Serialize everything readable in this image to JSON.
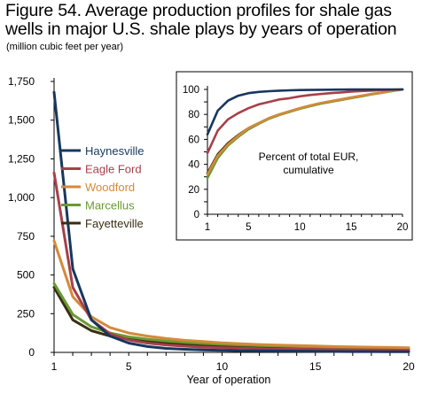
{
  "title_line1": "Figure 54. Average production profiles for shale gas",
  "title_line2": "wells in major U.S. shale plays by years of operation",
  "subtitle": "(million cubic feet per year)",
  "chart_data": [
    {
      "type": "line",
      "title": "Figure 54. Average production profiles for shale gas wells in major U.S. shale plays by years of operation",
      "ylabel": "(million cubic feet per year)",
      "xlabel": "Year of operation",
      "x": [
        1,
        2,
        3,
        4,
        5,
        6,
        7,
        8,
        9,
        10,
        11,
        12,
        13,
        14,
        15,
        16,
        17,
        18,
        19,
        20
      ],
      "xlim": [
        1,
        20
      ],
      "ylim": [
        0,
        1750
      ],
      "xticks": [
        "1",
        "5",
        "10",
        "15",
        "20"
      ],
      "yticks": [
        "0",
        "250",
        "500",
        "750",
        "1,000",
        "1,250",
        "1,500",
        "1,750"
      ],
      "legend": "top-left inside plot",
      "series": [
        {
          "name": "Haynesville",
          "color": "#17375e",
          "values": [
            1680,
            540,
            210,
            105,
            60,
            38,
            26,
            20,
            16,
            13,
            11,
            10,
            9,
            8,
            7,
            6,
            5,
            5,
            4,
            4
          ]
        },
        {
          "name": "Eagle Ford",
          "color": "#a6404a",
          "values": [
            1160,
            420,
            210,
            120,
            80,
            60,
            48,
            40,
            34,
            30,
            27,
            24,
            22,
            20,
            19,
            18,
            17,
            16,
            15,
            14
          ]
        },
        {
          "name": "Woodford",
          "color": "#d48a3a",
          "values": [
            720,
            360,
            230,
            160,
            125,
            105,
            90,
            78,
            70,
            62,
            56,
            51,
            47,
            44,
            41,
            38,
            36,
            34,
            32,
            30
          ]
        },
        {
          "name": "Marcellus",
          "color": "#6a9a32",
          "values": [
            445,
            245,
            165,
            125,
            100,
            85,
            74,
            65,
            58,
            52,
            48,
            44,
            41,
            38,
            36,
            34,
            32,
            30,
            28,
            27
          ]
        },
        {
          "name": "Fayetteville",
          "color": "#3a2e12",
          "values": [
            420,
            210,
            140,
            105,
            85,
            72,
            62,
            54,
            48,
            44,
            40,
            37,
            34,
            32,
            30,
            28,
            26,
            25,
            24,
            23
          ]
        }
      ]
    },
    {
      "type": "line",
      "title": "Percent of total EUR, cumulative",
      "annotation_line1": "Percent of total EUR,",
      "annotation_line2": "cumulative",
      "x": [
        1,
        2,
        3,
        4,
        5,
        6,
        7,
        8,
        9,
        10,
        11,
        12,
        13,
        14,
        15,
        16,
        17,
        18,
        19,
        20
      ],
      "xlim": [
        1,
        20
      ],
      "ylim": [
        0,
        100
      ],
      "xticks": [
        "1",
        "5",
        "10",
        "15",
        "20"
      ],
      "yticks": [
        "0",
        "10",
        "20",
        "30",
        "40",
        "50",
        "60",
        "70",
        "80",
        "90",
        "100"
      ],
      "series": [
        {
          "name": "Haynesville",
          "color": "#17375e",
          "values": [
            64,
            83,
            91,
            95,
            97,
            98,
            98.6,
            99,
            99.3,
            99.5,
            99.6,
            99.7,
            99.8,
            99.85,
            99.9,
            99.92,
            99.95,
            99.97,
            99.99,
            100
          ]
        },
        {
          "name": "Eagle Ford",
          "color": "#a6404a",
          "values": [
            49,
            67,
            76,
            81,
            85,
            88,
            90,
            92,
            93,
            94.5,
            95.5,
            96.3,
            97,
            97.6,
            98.2,
            98.7,
            99.1,
            99.5,
            99.8,
            100
          ]
        },
        {
          "name": "Woodford",
          "color": "#d48a3a",
          "values": [
            32,
            47,
            56,
            63,
            69,
            73,
            77,
            80,
            82.5,
            85,
            87,
            89,
            90.5,
            92,
            93.5,
            95,
            96.3,
            97.5,
            98.8,
            100
          ]
        },
        {
          "name": "Marcellus",
          "color": "#6a9a32",
          "values": [
            29,
            45,
            55,
            62,
            68,
            72.5,
            76.5,
            79.5,
            82,
            84.5,
            86.5,
            88.5,
            90,
            91.5,
            93,
            94.5,
            96,
            97.3,
            98.7,
            100
          ]
        },
        {
          "name": "Fayetteville",
          "color": "#3a2e12",
          "values": [
            33,
            48,
            57,
            63.5,
            69,
            73,
            77,
            80,
            82.5,
            85,
            87,
            89,
            90.5,
            92,
            93.5,
            95,
            96.3,
            97.5,
            98.8,
            100
          ]
        }
      ]
    }
  ]
}
